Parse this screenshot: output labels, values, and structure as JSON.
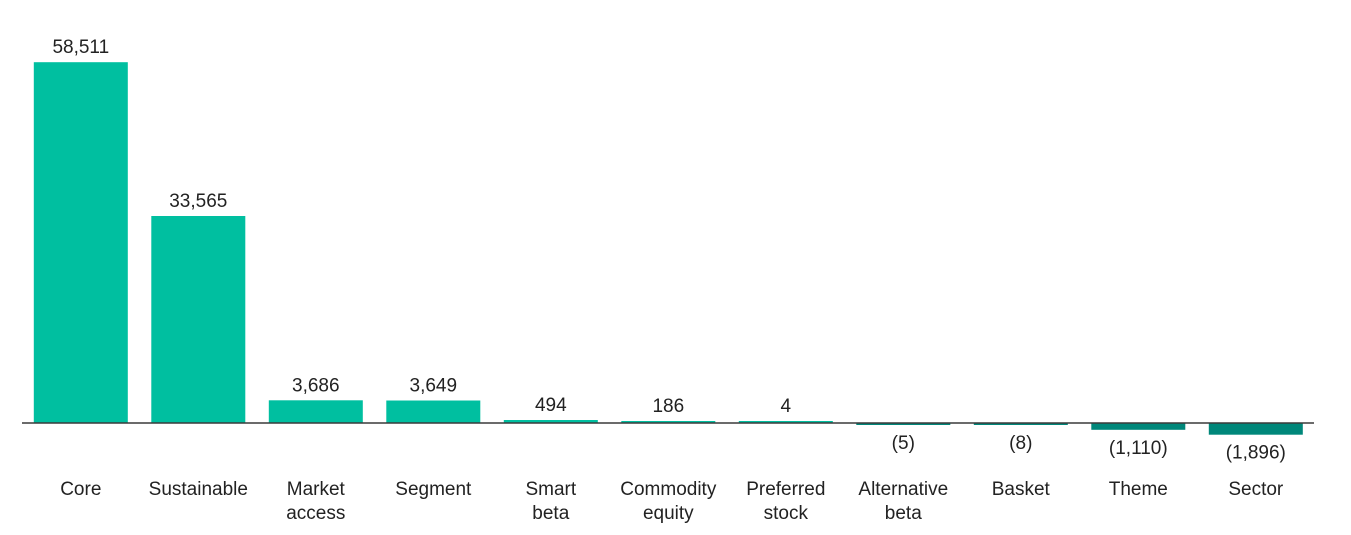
{
  "chart_data": {
    "type": "bar",
    "title": "",
    "xlabel": "",
    "ylabel": "",
    "ylim": [
      -2000,
      60000
    ],
    "grid": false,
    "legend": "none",
    "categories": [
      [
        "Core"
      ],
      [
        "Sustainable"
      ],
      [
        "Market",
        "access"
      ],
      [
        "Segment"
      ],
      [
        "Smart",
        "beta"
      ],
      [
        "Commodity",
        "equity"
      ],
      [
        "Preferred",
        "stock"
      ],
      [
        "Alternative",
        "beta"
      ],
      [
        "Basket"
      ],
      [
        "Theme"
      ],
      [
        "Sector"
      ]
    ],
    "values": [
      58511,
      33565,
      3686,
      3649,
      494,
      186,
      4,
      -5,
      -8,
      -1110,
      -1896
    ],
    "value_labels": [
      "58,511",
      "33,565",
      "3,686",
      "3,649",
      "494",
      "186",
      "4",
      "(5)",
      "(8)",
      "(1,110)",
      "(1,896)"
    ],
    "colors": {
      "positive": "#00bfa0",
      "negative": "#00877a",
      "baseline": "#3a3a3a"
    }
  }
}
